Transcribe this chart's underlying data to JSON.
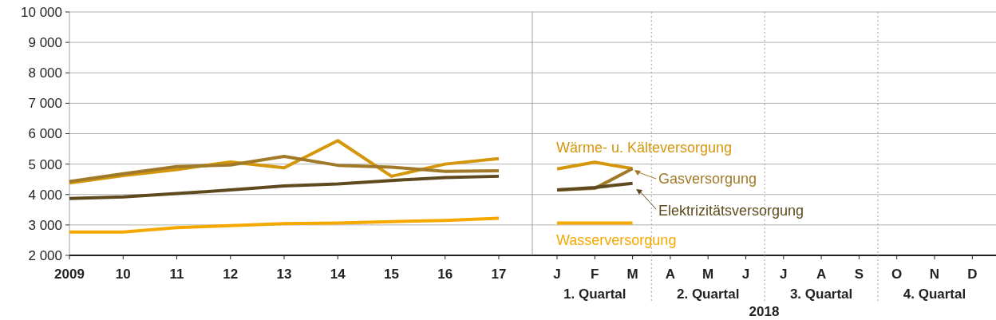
{
  "chart_data": [
    {
      "type": "line",
      "categories": [
        "2009",
        "10",
        "11",
        "12",
        "13",
        "14",
        "15",
        "16",
        "17"
      ],
      "series": [
        {
          "color": "#d4960a",
          "values": [
            4380,
            4620,
            4820,
            5070,
            4880,
            5770,
            4600,
            5000,
            5180
          ]
        },
        {
          "color": "#a07a28",
          "values": [
            4430,
            4680,
            4920,
            4970,
            5250,
            4960,
            4900,
            4760,
            4780
          ]
        },
        {
          "color": "#5e4a1e",
          "values": [
            3870,
            3920,
            4030,
            4150,
            4280,
            4350,
            4460,
            4560,
            4600
          ]
        },
        {
          "color": "#f5a800",
          "values": [
            2770,
            2770,
            2910,
            2980,
            3040,
            3060,
            3110,
            3150,
            3220
          ]
        }
      ],
      "ylim": [
        2000,
        10000
      ],
      "yticks": [
        {
          "value": 2000,
          "label": "2 000"
        },
        {
          "value": 3000,
          "label": "3 000"
        },
        {
          "value": 4000,
          "label": "4 000"
        },
        {
          "value": 5000,
          "label": "5 000"
        },
        {
          "value": 6000,
          "label": "6 000"
        },
        {
          "value": 7000,
          "label": "7 000"
        },
        {
          "value": 8000,
          "label": "8 000"
        },
        {
          "value": 9000,
          "label": "9 000"
        },
        {
          "value": 10000,
          "label": "10 000"
        }
      ],
      "grid": "y",
      "marker": "none",
      "line_style": "solid"
    },
    {
      "type": "line",
      "categories": [
        "J",
        "F",
        "M",
        "A",
        "M",
        "J",
        "J",
        "A",
        "S",
        "O",
        "N",
        "D"
      ],
      "series": [
        {
          "name": "Wärme- u. Kälteversorgung",
          "color": "#d4960a",
          "values": [
            4840,
            5060,
            4850,
            null,
            null,
            null,
            null,
            null,
            null,
            null,
            null,
            null
          ]
        },
        {
          "name": "Gasversorgung",
          "color": "#a07a28",
          "values": [
            4150,
            4200,
            4850,
            null,
            null,
            null,
            null,
            null,
            null,
            null,
            null,
            null
          ]
        },
        {
          "name": "Elektrizitätsversorgung",
          "color": "#5e4a1e",
          "values": [
            4150,
            4230,
            4370,
            null,
            null,
            null,
            null,
            null,
            null,
            null,
            null,
            null
          ]
        },
        {
          "name": "Wasserversorgung",
          "color": "#f5a800",
          "values": [
            3060,
            3060,
            3060,
            null,
            null,
            null,
            null,
            null,
            null,
            null,
            null,
            null
          ]
        }
      ],
      "ylim": [
        2000,
        10000
      ],
      "yticks": [
        2000,
        3000,
        4000,
        5000,
        6000,
        7000,
        8000,
        9000,
        10000
      ],
      "tick_labels": "x",
      "grid": "y",
      "marker": "none",
      "line_style": "solid",
      "annotations": [
        "1. Quartal",
        "2. Quartal",
        "3. Quartal",
        "4. Quartal",
        "2018"
      ]
    }
  ]
}
